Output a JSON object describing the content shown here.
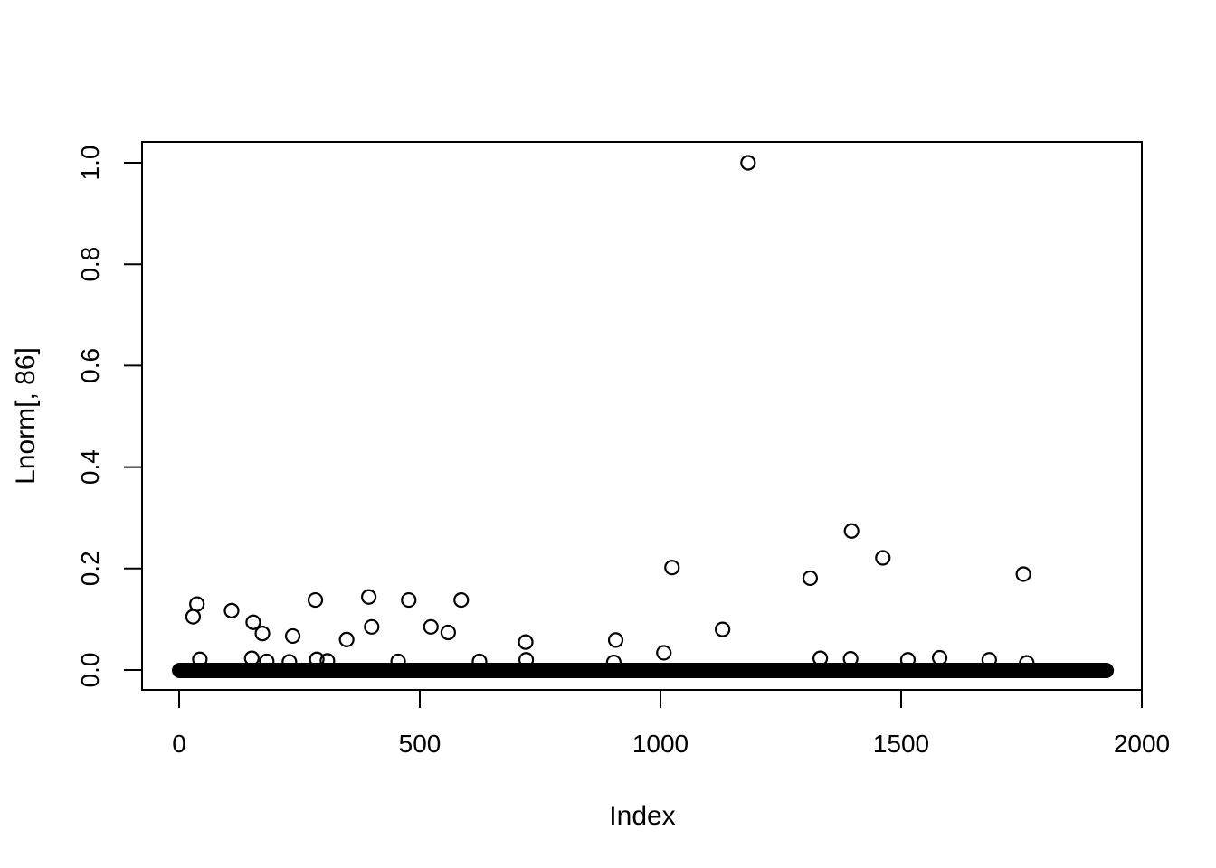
{
  "figure": {
    "background_color": "#ffffff",
    "foreground_color": "#000000"
  },
  "chart_data": {
    "type": "scatter",
    "title": "",
    "xlabel": "Index",
    "ylabel": "Lnorm[, 86]",
    "xlim": [
      0,
      2000
    ],
    "ylim": [
      0.0,
      1.0
    ],
    "x_ticks": [
      0,
      500,
      1000,
      1500,
      2000
    ],
    "x_tick_labels": [
      "0",
      "500",
      "1000",
      "1500",
      "2000"
    ],
    "y_ticks": [
      0.0,
      0.2,
      0.4,
      0.6,
      0.8,
      1.0
    ],
    "y_tick_labels": [
      "0.0",
      "0.2",
      "0.4",
      "0.6",
      "0.8",
      "1.0"
    ],
    "grid": false,
    "legend_position": "none",
    "marker": "open-circle",
    "point_color": "#000000",
    "dense_band": {
      "y": 0.0,
      "x_start": 1,
      "x_end": 1926,
      "note": "approx 1900 overlapping near-zero points drawn so densely they form a solid black band with rounded ends"
    },
    "points": [
      [
        29,
        0.105
      ],
      [
        37,
        0.13
      ],
      [
        43,
        0.021
      ],
      [
        109,
        0.117
      ],
      [
        151,
        0.023
      ],
      [
        154,
        0.094
      ],
      [
        173,
        0.072
      ],
      [
        182,
        0.017
      ],
      [
        229,
        0.016
      ],
      [
        236,
        0.067
      ],
      [
        283,
        0.138
      ],
      [
        286,
        0.021
      ],
      [
        308,
        0.018
      ],
      [
        348,
        0.06
      ],
      [
        394,
        0.144
      ],
      [
        400,
        0.085
      ],
      [
        455,
        0.017
      ],
      [
        477,
        0.138
      ],
      [
        523,
        0.085
      ],
      [
        559,
        0.074
      ],
      [
        586,
        0.138
      ],
      [
        624,
        0.017
      ],
      [
        720,
        0.055
      ],
      [
        721,
        0.02
      ],
      [
        903,
        0.015
      ],
      [
        907,
        0.059
      ],
      [
        1007,
        0.034
      ],
      [
        1024,
        0.202
      ],
      [
        1129,
        0.08
      ],
      [
        1182,
        1.0
      ],
      [
        1311,
        0.181
      ],
      [
        1332,
        0.023
      ],
      [
        1395,
        0.022
      ],
      [
        1397,
        0.274
      ],
      [
        1462,
        0.221
      ],
      [
        1514,
        0.02
      ],
      [
        1580,
        0.024
      ],
      [
        1683,
        0.02
      ],
      [
        1754,
        0.189
      ],
      [
        1761,
        0.014
      ]
    ]
  }
}
